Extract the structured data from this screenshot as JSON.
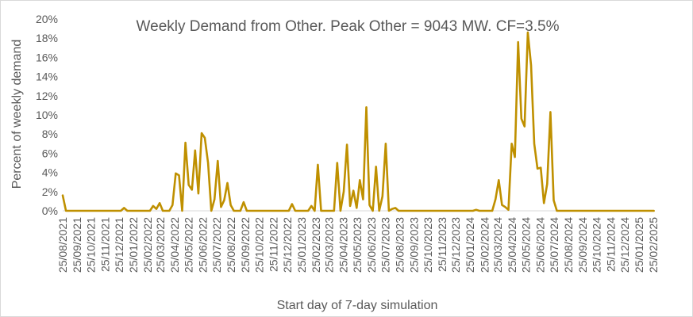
{
  "chart_data": {
    "type": "line",
    "title": "Weekly Demand from Other. Peak Other = 9043 MW. CF=3.5%",
    "xlabel": "Start day of 7-day simulation",
    "ylabel": "Percent of weekly demand",
    "ylim": [
      0,
      20
    ],
    "yticks": [
      "0%",
      "2%",
      "4%",
      "6%",
      "8%",
      "10%",
      "12%",
      "14%",
      "16%",
      "18%",
      "20%"
    ],
    "xlim": [
      "2021-08-25",
      "2025-02-25"
    ],
    "xtick_labels": [
      "25/08/2021",
      "25/09/2021",
      "25/10/2021",
      "25/11/2021",
      "25/12/2021",
      "25/01/2022",
      "25/02/2022",
      "25/03/2022",
      "25/04/2022",
      "25/05/2022",
      "25/06/2022",
      "25/07/2022",
      "25/08/2022",
      "25/09/2022",
      "25/10/2022",
      "25/11/2022",
      "25/12/2022",
      "25/01/2023",
      "25/02/2023",
      "25/03/2023",
      "25/04/2023",
      "25/05/2023",
      "25/06/2023",
      "25/07/2023",
      "25/08/2023",
      "25/09/2023",
      "25/10/2023",
      "25/11/2023",
      "25/12/2023",
      "25/01/2024",
      "25/02/2024",
      "25/03/2024",
      "25/04/2024",
      "25/05/2024",
      "25/06/2024",
      "25/07/2024",
      "25/08/2024",
      "25/09/2024",
      "25/10/2024",
      "25/11/2024",
      "25/12/2024",
      "25/01/2025",
      "25/02/2025"
    ],
    "grid": false,
    "legend": "none",
    "series": [
      {
        "color": "#bf9000",
        "points": [
          [
            "2021-08-25",
            1.6
          ],
          [
            "2021-09-01",
            0.0
          ],
          [
            "2021-12-29",
            0.0
          ],
          [
            "2022-01-05",
            0.3
          ],
          [
            "2022-01-12",
            0.0
          ],
          [
            "2022-03-02",
            0.0
          ],
          [
            "2022-03-09",
            0.5
          ],
          [
            "2022-03-16",
            0.2
          ],
          [
            "2022-03-23",
            0.8
          ],
          [
            "2022-03-30",
            0.0
          ],
          [
            "2022-04-13",
            0.0
          ],
          [
            "2022-04-20",
            0.6
          ],
          [
            "2022-04-27",
            3.9
          ],
          [
            "2022-05-04",
            3.7
          ],
          [
            "2022-05-11",
            0.0
          ],
          [
            "2022-05-18",
            7.1
          ],
          [
            "2022-05-25",
            2.7
          ],
          [
            "2022-06-01",
            2.2
          ],
          [
            "2022-06-08",
            6.3
          ],
          [
            "2022-06-15",
            1.8
          ],
          [
            "2022-06-22",
            8.1
          ],
          [
            "2022-06-29",
            7.6
          ],
          [
            "2022-07-06",
            5.0
          ],
          [
            "2022-07-13",
            0.0
          ],
          [
            "2022-07-20",
            1.2
          ],
          [
            "2022-07-27",
            5.2
          ],
          [
            "2022-08-03",
            0.4
          ],
          [
            "2022-08-10",
            1.1
          ],
          [
            "2022-08-17",
            2.9
          ],
          [
            "2022-08-24",
            0.6
          ],
          [
            "2022-08-31",
            0.0
          ],
          [
            "2022-09-14",
            0.0
          ],
          [
            "2022-09-21",
            0.9
          ],
          [
            "2022-09-28",
            0.0
          ],
          [
            "2022-12-28",
            0.0
          ],
          [
            "2023-01-04",
            0.7
          ],
          [
            "2023-01-11",
            0.0
          ],
          [
            "2023-02-08",
            0.0
          ],
          [
            "2023-02-15",
            0.5
          ],
          [
            "2023-02-22",
            0.0
          ],
          [
            "2023-03-01",
            4.8
          ],
          [
            "2023-03-08",
            0.0
          ],
          [
            "2023-04-05",
            0.0
          ],
          [
            "2023-04-12",
            5.0
          ],
          [
            "2023-04-19",
            0.0
          ],
          [
            "2023-04-26",
            2.0
          ],
          [
            "2023-05-03",
            6.9
          ],
          [
            "2023-05-10",
            0.5
          ],
          [
            "2023-05-17",
            2.1
          ],
          [
            "2023-05-24",
            0.3
          ],
          [
            "2023-05-31",
            3.2
          ],
          [
            "2023-06-07",
            1.2
          ],
          [
            "2023-06-14",
            10.8
          ],
          [
            "2023-06-21",
            0.6
          ],
          [
            "2023-06-28",
            0.0
          ],
          [
            "2023-07-05",
            4.6
          ],
          [
            "2023-07-12",
            0.0
          ],
          [
            "2023-07-19",
            1.5
          ],
          [
            "2023-07-26",
            7.0
          ],
          [
            "2023-08-02",
            0.0
          ],
          [
            "2023-08-09",
            0.2
          ],
          [
            "2023-08-16",
            0.3
          ],
          [
            "2023-08-23",
            0.0
          ],
          [
            "2024-01-31",
            0.0
          ],
          [
            "2024-02-07",
            0.1
          ],
          [
            "2024-02-14",
            0.0
          ],
          [
            "2024-03-13",
            0.0
          ],
          [
            "2024-03-20",
            1.2
          ],
          [
            "2024-03-27",
            3.2
          ],
          [
            "2024-04-03",
            0.6
          ],
          [
            "2024-04-10",
            0.4
          ],
          [
            "2024-04-17",
            0.1
          ],
          [
            "2024-04-24",
            7.0
          ],
          [
            "2024-05-01",
            5.6
          ],
          [
            "2024-05-08",
            17.6
          ],
          [
            "2024-05-15",
            9.6
          ],
          [
            "2024-05-22",
            8.8
          ],
          [
            "2024-05-29",
            18.6
          ],
          [
            "2024-06-05",
            15.2
          ],
          [
            "2024-06-12",
            7.0
          ],
          [
            "2024-06-19",
            4.4
          ],
          [
            "2024-06-26",
            4.5
          ],
          [
            "2024-07-03",
            0.8
          ],
          [
            "2024-07-10",
            2.8
          ],
          [
            "2024-07-17",
            10.3
          ],
          [
            "2024-07-24",
            1.1
          ],
          [
            "2024-07-31",
            0.0
          ],
          [
            "2025-02-26",
            0.0
          ]
        ]
      }
    ]
  }
}
